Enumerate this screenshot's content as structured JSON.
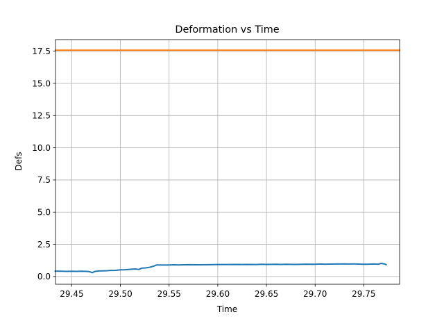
{
  "chart_data": {
    "type": "line",
    "title": "Deformation vs Time",
    "xlabel": "Time",
    "ylabel": "Defs",
    "xlim": [
      29.4333,
      29.7868
    ],
    "ylim": [
      -0.6,
      18.4
    ],
    "grid": true,
    "legend": "none",
    "xticks": [
      29.45,
      29.5,
      29.55,
      29.6,
      29.65,
      29.7,
      29.75
    ],
    "xtick_labels": [
      "29.45",
      "29.50",
      "29.55",
      "29.60",
      "29.65",
      "29.70",
      "29.75"
    ],
    "yticks": [
      0.0,
      2.5,
      5.0,
      7.5,
      10.0,
      12.5,
      15.0,
      17.5
    ],
    "ytick_labels": [
      "0.0",
      "2.5",
      "5.0",
      "7.5",
      "10.0",
      "12.5",
      "15.0",
      "17.5"
    ],
    "series": [
      {
        "color": "#1f77b4",
        "x": [
          29.433,
          29.44,
          29.445,
          29.45,
          29.455,
          29.46,
          29.465,
          29.468,
          29.471,
          29.474,
          29.478,
          29.482,
          29.486,
          29.49,
          29.495,
          29.5,
          29.505,
          29.51,
          29.515,
          29.519,
          29.522,
          29.526,
          29.53,
          29.534,
          29.537,
          29.54,
          29.545,
          29.55,
          29.555,
          29.56,
          29.565,
          29.57,
          29.58,
          29.59,
          29.6,
          29.61,
          29.62,
          29.625,
          29.63,
          29.64,
          29.645,
          29.65,
          29.66,
          29.665,
          29.67,
          29.68,
          29.69,
          29.7,
          29.705,
          29.71,
          29.72,
          29.73,
          29.735,
          29.74,
          29.75,
          29.755,
          29.76,
          29.765,
          29.768,
          29.771,
          29.773
        ],
        "y": [
          0.42,
          0.41,
          0.4,
          0.41,
          0.4,
          0.41,
          0.4,
          0.38,
          0.3,
          0.4,
          0.43,
          0.44,
          0.45,
          0.47,
          0.48,
          0.52,
          0.53,
          0.56,
          0.59,
          0.55,
          0.65,
          0.67,
          0.72,
          0.8,
          0.9,
          0.9,
          0.89,
          0.9,
          0.91,
          0.9,
          0.91,
          0.92,
          0.91,
          0.92,
          0.93,
          0.93,
          0.94,
          0.93,
          0.94,
          0.93,
          0.95,
          0.94,
          0.95,
          0.94,
          0.95,
          0.94,
          0.96,
          0.95,
          0.97,
          0.96,
          0.97,
          0.98,
          0.97,
          0.98,
          0.95,
          0.96,
          0.97,
          0.96,
          1.02,
          0.98,
          0.92
        ]
      },
      {
        "color": "#ff7f0e",
        "x": [
          29.4333,
          29.7868
        ],
        "y": [
          17.58,
          17.58
        ]
      }
    ]
  }
}
